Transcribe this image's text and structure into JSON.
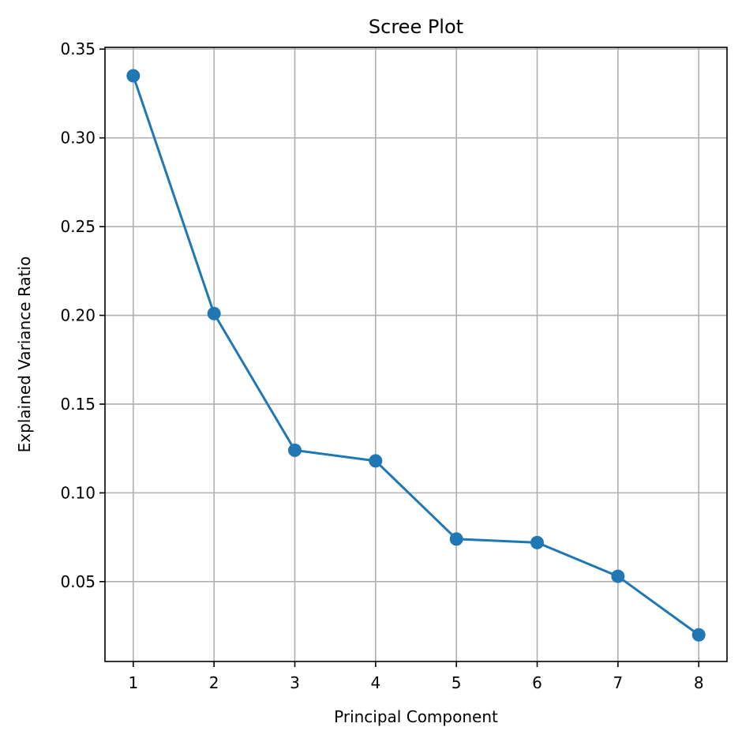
{
  "chart_data": {
    "type": "line",
    "title": "Scree Plot",
    "xlabel": "Principal Component",
    "ylabel": "Explained Variance Ratio",
    "x": [
      1,
      2,
      3,
      4,
      5,
      6,
      7,
      8
    ],
    "xticks": [
      "1",
      "2",
      "3",
      "4",
      "5",
      "6",
      "7",
      "8"
    ],
    "xlim": [
      0.65,
      8.35
    ],
    "ylim": [
      0.005,
      0.351
    ],
    "yticks": [
      0.05,
      0.1,
      0.15,
      0.2,
      0.25,
      0.3,
      0.35
    ],
    "ytick_labels": [
      "0.05",
      "0.10",
      "0.15",
      "0.20",
      "0.25",
      "0.30",
      "0.35"
    ],
    "grid": true,
    "series": [
      {
        "values": [
          0.335,
          0.201,
          0.124,
          0.118,
          0.074,
          0.072,
          0.053,
          0.02
        ],
        "color": "#1f77b4",
        "marker": "circle"
      }
    ]
  }
}
